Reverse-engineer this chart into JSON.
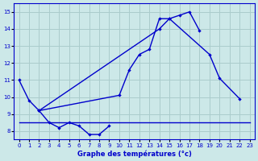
{
  "xlabel": "Graphe des températures (°c)",
  "background_color": "#cce8e8",
  "grid_color": "#aacccc",
  "line_color": "#0000cc",
  "ylim": [
    7.5,
    15.5
  ],
  "xlim": [
    -0.5,
    23.5
  ],
  "yticks": [
    8,
    9,
    10,
    11,
    12,
    13,
    14,
    15
  ],
  "xticks": [
    0,
    1,
    2,
    3,
    4,
    5,
    6,
    7,
    8,
    9,
    10,
    11,
    12,
    13,
    14,
    15,
    16,
    17,
    18,
    19,
    20,
    21,
    22,
    23
  ],
  "series1_x": [
    0,
    1,
    2,
    3,
    4,
    5,
    6,
    7,
    8,
    9
  ],
  "series1_y": [
    11.0,
    9.8,
    9.2,
    8.5,
    8.2,
    8.5,
    8.3,
    7.8,
    7.8,
    8.3
  ],
  "series2_x": [
    2,
    10,
    11,
    12,
    13,
    14,
    15,
    19,
    20,
    22
  ],
  "series2_y": [
    9.2,
    10.1,
    11.6,
    12.5,
    12.8,
    14.6,
    14.6,
    12.5,
    11.1,
    9.9
  ],
  "series3_x": [
    2,
    14,
    15,
    16,
    17,
    18
  ],
  "series3_y": [
    9.2,
    14.0,
    14.6,
    14.8,
    15.0,
    13.9
  ],
  "series4_x": [
    0,
    18,
    23
  ],
  "series4_y": [
    8.5,
    8.5,
    8.5
  ]
}
